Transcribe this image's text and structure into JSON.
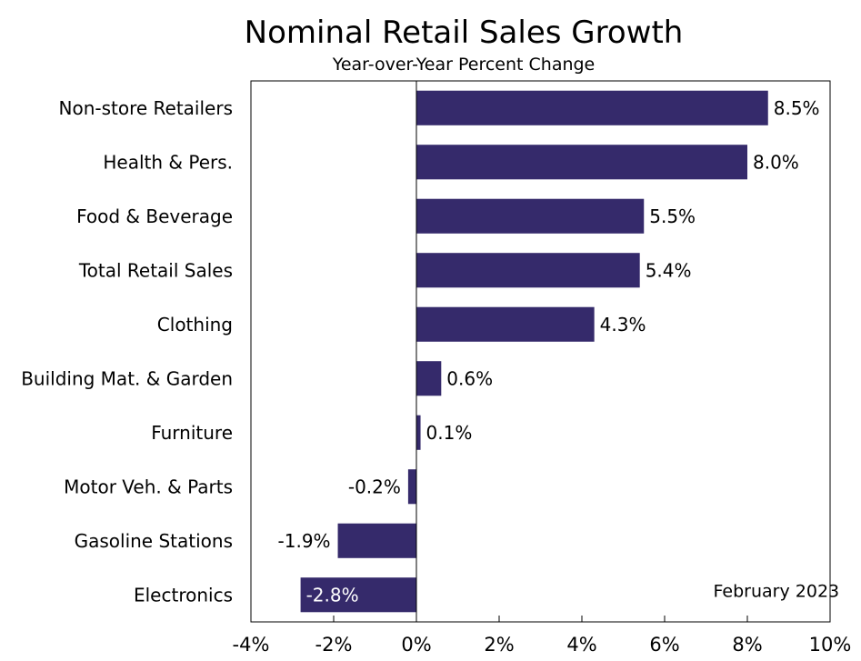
{
  "chart_data": {
    "type": "bar",
    "orientation": "horizontal",
    "title": "Nominal Retail Sales Growth",
    "subtitle": "Year-over-Year Percent Change",
    "annotation": "February 2023",
    "categories": [
      "Non-store Retailers",
      "Health & Pers.",
      "Food & Beverage",
      "Total Retail Sales",
      "Clothing",
      "Building Mat. & Garden",
      "Furniture",
      "Motor Veh. & Parts",
      "Gasoline Stations",
      "Electronics"
    ],
    "values": [
      8.5,
      8.0,
      5.5,
      5.4,
      4.3,
      0.6,
      0.1,
      -0.2,
      -1.9,
      -2.8
    ],
    "value_labels": [
      "8.5%",
      "8.0%",
      "5.5%",
      "5.4%",
      "4.3%",
      "0.6%",
      "0.1%",
      "-0.2%",
      "-1.9%",
      "-2.8%"
    ],
    "xlim": [
      -4,
      10
    ],
    "xticks": [
      -4,
      -2,
      0,
      2,
      4,
      6,
      8,
      10
    ],
    "xtick_labels": [
      "-4%",
      "-2%",
      "0%",
      "2%",
      "4%",
      "6%",
      "8%",
      "10%"
    ],
    "xlabel": "",
    "ylabel": "",
    "bar_color": "#352a6b",
    "grid": false,
    "legend": "none"
  }
}
